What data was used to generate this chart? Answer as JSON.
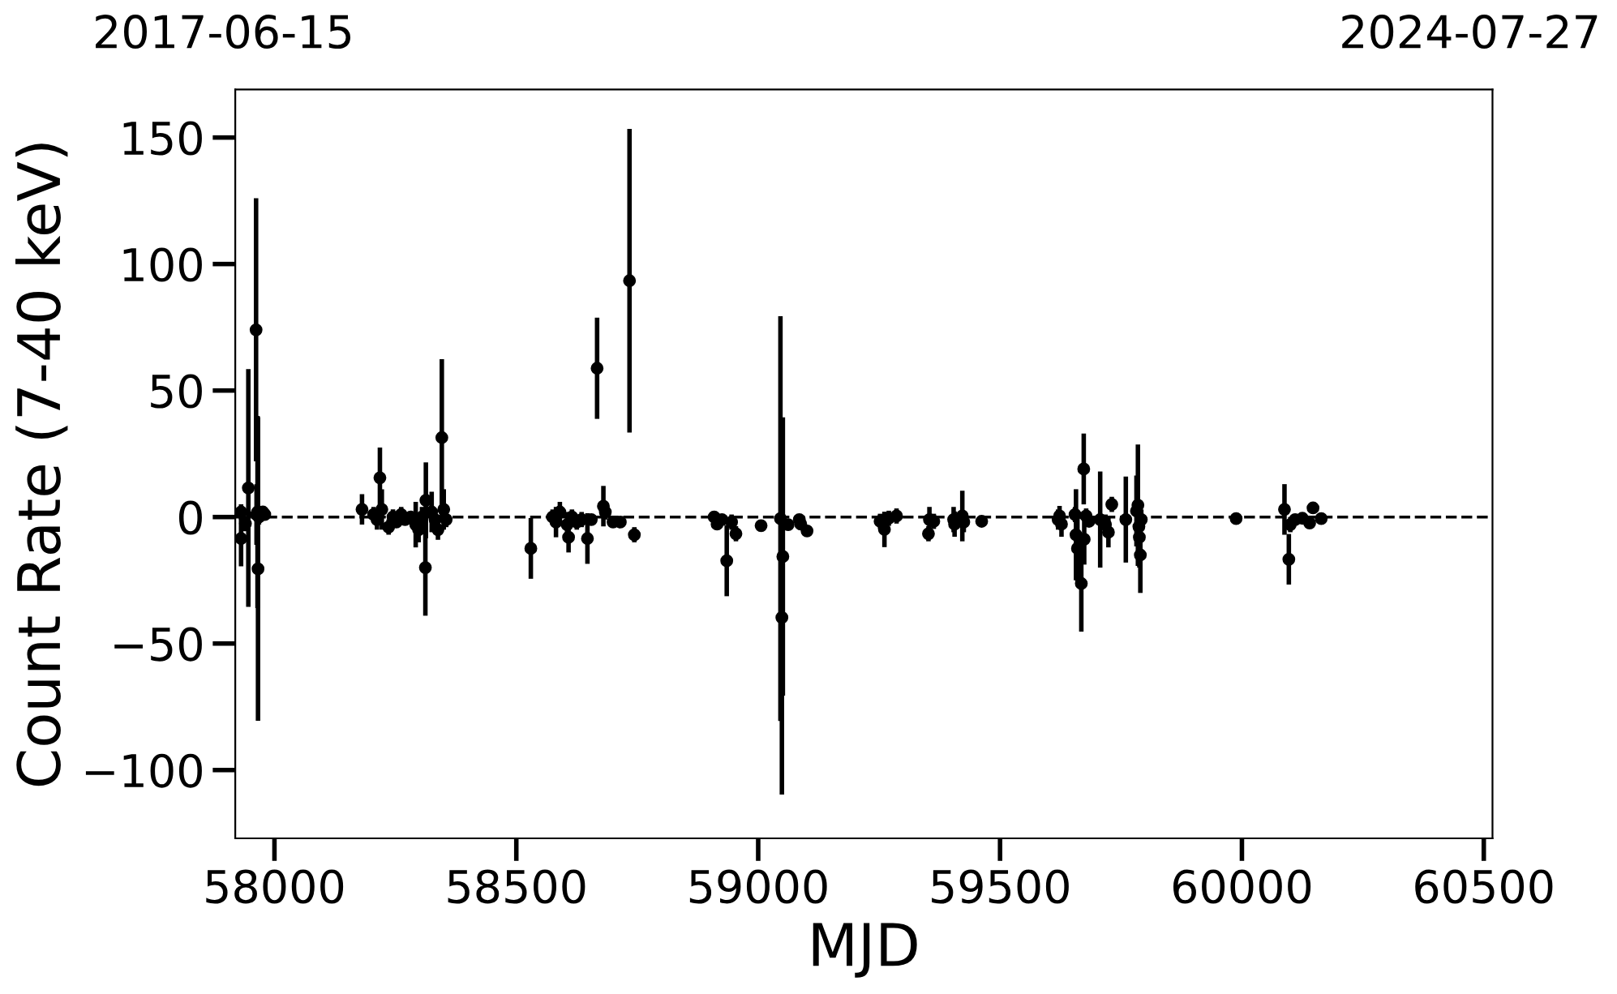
{
  "chart_data": {
    "type": "scatter",
    "xlabel": "MJD",
    "ylabel": "Count Rate (7-40 keV)",
    "annotations": [
      "2017-06-15",
      "2024-07-27"
    ],
    "xlim": [
      57919,
      60518
    ],
    "xticks": [
      58000,
      58500,
      59000,
      59500,
      60000,
      60500
    ],
    "ylim": [
      -127,
      169
    ],
    "yticks": [
      -100,
      -50,
      0,
      50,
      100,
      150
    ],
    "grid": false,
    "legend": false,
    "marker": "circle",
    "ref_lines": [
      {
        "axis": "y",
        "value": 0,
        "color": "#000000",
        "line_style": "dashed"
      }
    ],
    "series": [
      {
        "color": "#000000",
        "x": [
          57931,
          57931,
          57940,
          57946,
          57962,
          57963,
          57965,
          57966,
          57968,
          57976,
          57980,
          58181,
          58205,
          58212,
          58218,
          58222,
          58236,
          58245,
          58252,
          58262,
          58270,
          58282,
          58292,
          58298,
          58305,
          58312,
          58313,
          58325,
          58332,
          58338,
          58346,
          58350,
          58355,
          58530,
          58575,
          58582,
          58590,
          58605,
          58608,
          58615,
          58625,
          58635,
          58647,
          58655,
          58667,
          58680,
          58684,
          58700,
          58715,
          58734,
          58744,
          58909,
          58915,
          58925,
          58935,
          58945,
          58954,
          59006,
          59046,
          59049,
          59051,
          59062,
          59085,
          59088,
          59101,
          59252,
          59261,
          59270,
          59286,
          59352,
          59354,
          59363,
          59404,
          59406,
          59422,
          59425,
          59462,
          59620,
          59623,
          59627,
          59655,
          59657,
          59660,
          59668,
          59673,
          59674,
          59678,
          59684,
          59707,
          59718,
          59724,
          59731,
          59760,
          59782,
          59785,
          59787,
          59788,
          59790,
          59792,
          59988,
          60088,
          60097,
          60100,
          60110,
          60125,
          60140,
          60147,
          60164
        ],
        "values": [
          2,
          -8.5,
          -2.6,
          11.5,
          74,
          1,
          2,
          -20.5,
          0,
          2,
          1,
          3,
          1,
          -1,
          15.5,
          3,
          -4,
          0,
          -2,
          1,
          -1,
          0,
          -3,
          -5,
          0,
          -20,
          6.6,
          2,
          -1,
          -5,
          31.4,
          3,
          -1,
          -12.4,
          0,
          -2,
          2,
          -3,
          -8,
          0,
          -2,
          -1,
          -8.5,
          -1,
          58.8,
          4.3,
          2,
          -2,
          -2,
          93.4,
          -7,
          0,
          -2.8,
          -1,
          -17.3,
          -2,
          -6.6,
          -3.4,
          -0.6,
          -39.7,
          -15.6,
          -3,
          -1,
          -2.8,
          -5.5,
          -1.7,
          -4.9,
          -0.5,
          0.4,
          -6.6,
          -1,
          -1.7,
          -1,
          -2.8,
          0.4,
          -2,
          -1.7,
          -1,
          0.4,
          -2.8,
          1,
          -7,
          -12.4,
          -26.3,
          19,
          -8.8,
          0.4,
          -1.7,
          -1,
          -3,
          -6,
          5,
          -1,
          2.4,
          4.7,
          -3.8,
          -8,
          -15,
          -1,
          -0.6,
          3,
          -16.7,
          -3,
          -1,
          -0.5,
          -2.4,
          3.6,
          -0.6
        ],
        "errors": [
          3,
          11,
          3,
          47,
          52,
          12,
          38,
          60,
          3,
          2,
          2,
          6,
          3,
          4,
          12,
          8,
          3,
          3,
          2,
          3,
          2,
          2,
          9,
          5,
          4,
          19,
          15,
          8,
          4,
          4,
          31,
          8,
          3,
          12,
          3,
          6,
          4,
          5,
          6,
          3,
          3,
          3,
          10,
          2,
          20,
          8,
          3,
          2,
          2,
          60,
          3,
          2,
          2,
          2,
          14,
          3,
          3,
          2,
          80,
          70,
          55,
          2,
          2,
          2,
          2,
          3,
          7,
          3,
          3,
          3,
          5,
          3,
          5,
          5,
          10,
          4,
          2,
          4,
          4,
          5,
          3,
          18,
          13,
          19,
          14,
          10,
          3,
          2,
          19,
          4,
          6,
          3,
          17,
          14,
          24,
          10,
          12,
          15,
          4,
          2,
          10,
          10,
          3,
          2,
          2,
          2,
          2,
          2
        ]
      }
    ]
  }
}
